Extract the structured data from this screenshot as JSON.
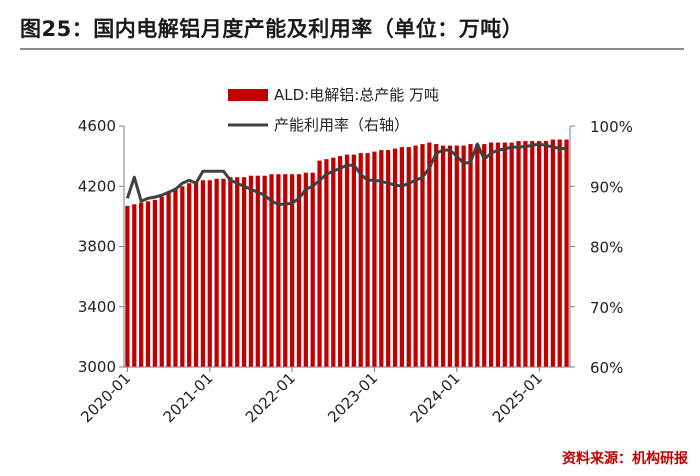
{
  "header": {
    "title": "图25：国内电解铝月度产能及利用率（单位：万吨）"
  },
  "footer": {
    "source": "资料来源：机构研报"
  },
  "colors": {
    "bar": "#c00000",
    "line": "#404040",
    "axis": "#7f7f7f"
  },
  "chart_data": {
    "type": "bar",
    "title": "图25：国内电解铝月度产能及利用率（单位：万吨）",
    "legend_position": "top-center",
    "grid": false,
    "x_tick_labels": [
      "2020-01",
      "2021-01",
      "2022-01",
      "2023-01",
      "2024-01",
      "2025-01"
    ],
    "y_left": {
      "min": 3000,
      "max": 4600,
      "ticks": [
        3000,
        3400,
        3800,
        4200,
        4600
      ]
    },
    "y_right": {
      "min": 60,
      "max": 100,
      "ticks": [
        60,
        70,
        80,
        90,
        100
      ],
      "tick_labels": [
        "60%",
        "70%",
        "80%",
        "90%",
        "100%"
      ]
    },
    "x": [
      "2020-01",
      "2020-02",
      "2020-03",
      "2020-04",
      "2020-05",
      "2020-06",
      "2020-07",
      "2020-08",
      "2020-09",
      "2020-10",
      "2020-11",
      "2020-12",
      "2021-01",
      "2021-02",
      "2021-03",
      "2021-04",
      "2021-05",
      "2021-06",
      "2021-07",
      "2021-08",
      "2021-09",
      "2021-10",
      "2021-11",
      "2021-12",
      "2022-01",
      "2022-02",
      "2022-03",
      "2022-04",
      "2022-05",
      "2022-06",
      "2022-07",
      "2022-08",
      "2022-09",
      "2022-10",
      "2022-11",
      "2022-12",
      "2023-01",
      "2023-02",
      "2023-03",
      "2023-04",
      "2023-05",
      "2023-06",
      "2023-07",
      "2023-08",
      "2023-09",
      "2023-10",
      "2023-11",
      "2023-12",
      "2024-01",
      "2024-02",
      "2024-03",
      "2024-04",
      "2024-05",
      "2024-06",
      "2024-07",
      "2024-08",
      "2024-09",
      "2024-10",
      "2024-11",
      "2024-12",
      "2025-01",
      "2025-02",
      "2025-03",
      "2025-04",
      "2025-05"
    ],
    "series": [
      {
        "name": "ALD:电解铝:总产能 万吨",
        "type": "bar",
        "axis": "left",
        "values": [
          4070,
          4080,
          4090,
          4100,
          4110,
          4130,
          4160,
          4180,
          4200,
          4220,
          4230,
          4240,
          4240,
          4250,
          4250,
          4260,
          4260,
          4260,
          4270,
          4270,
          4270,
          4280,
          4280,
          4280,
          4280,
          4280,
          4290,
          4290,
          4370,
          4380,
          4390,
          4400,
          4410,
          4410,
          4420,
          4420,
          4430,
          4440,
          4440,
          4450,
          4460,
          4460,
          4470,
          4480,
          4490,
          4480,
          4470,
          4470,
          4470,
          4470,
          4480,
          4480,
          4480,
          4490,
          4490,
          4490,
          4490,
          4500,
          4500,
          4500,
          4500,
          4500,
          4510,
          4510,
          4510
        ]
      },
      {
        "name": "产能利用率（右轴）",
        "type": "line",
        "axis": "right",
        "values": [
          88.0,
          91.5,
          87.5,
          88.0,
          88.2,
          88.5,
          89.0,
          89.5,
          90.5,
          91.0,
          90.5,
          92.5,
          92.5,
          92.5,
          92.5,
          91.0,
          90.5,
          90.0,
          89.5,
          89.0,
          88.5,
          87.5,
          87.0,
          87.0,
          87.2,
          88.0,
          89.5,
          90.0,
          91.0,
          92.0,
          92.5,
          93.0,
          93.5,
          93.5,
          92.0,
          91.0,
          91.0,
          90.8,
          90.5,
          90.2,
          90.0,
          90.5,
          91.0,
          91.5,
          93.0,
          95.5,
          96.0,
          96.0,
          95.0,
          93.8,
          94.0,
          97.0,
          94.5,
          95.5,
          96.0,
          96.2,
          96.5,
          96.5,
          96.6,
          96.8,
          97.0,
          96.8,
          96.5,
          96.3,
          96.2
        ]
      }
    ]
  }
}
